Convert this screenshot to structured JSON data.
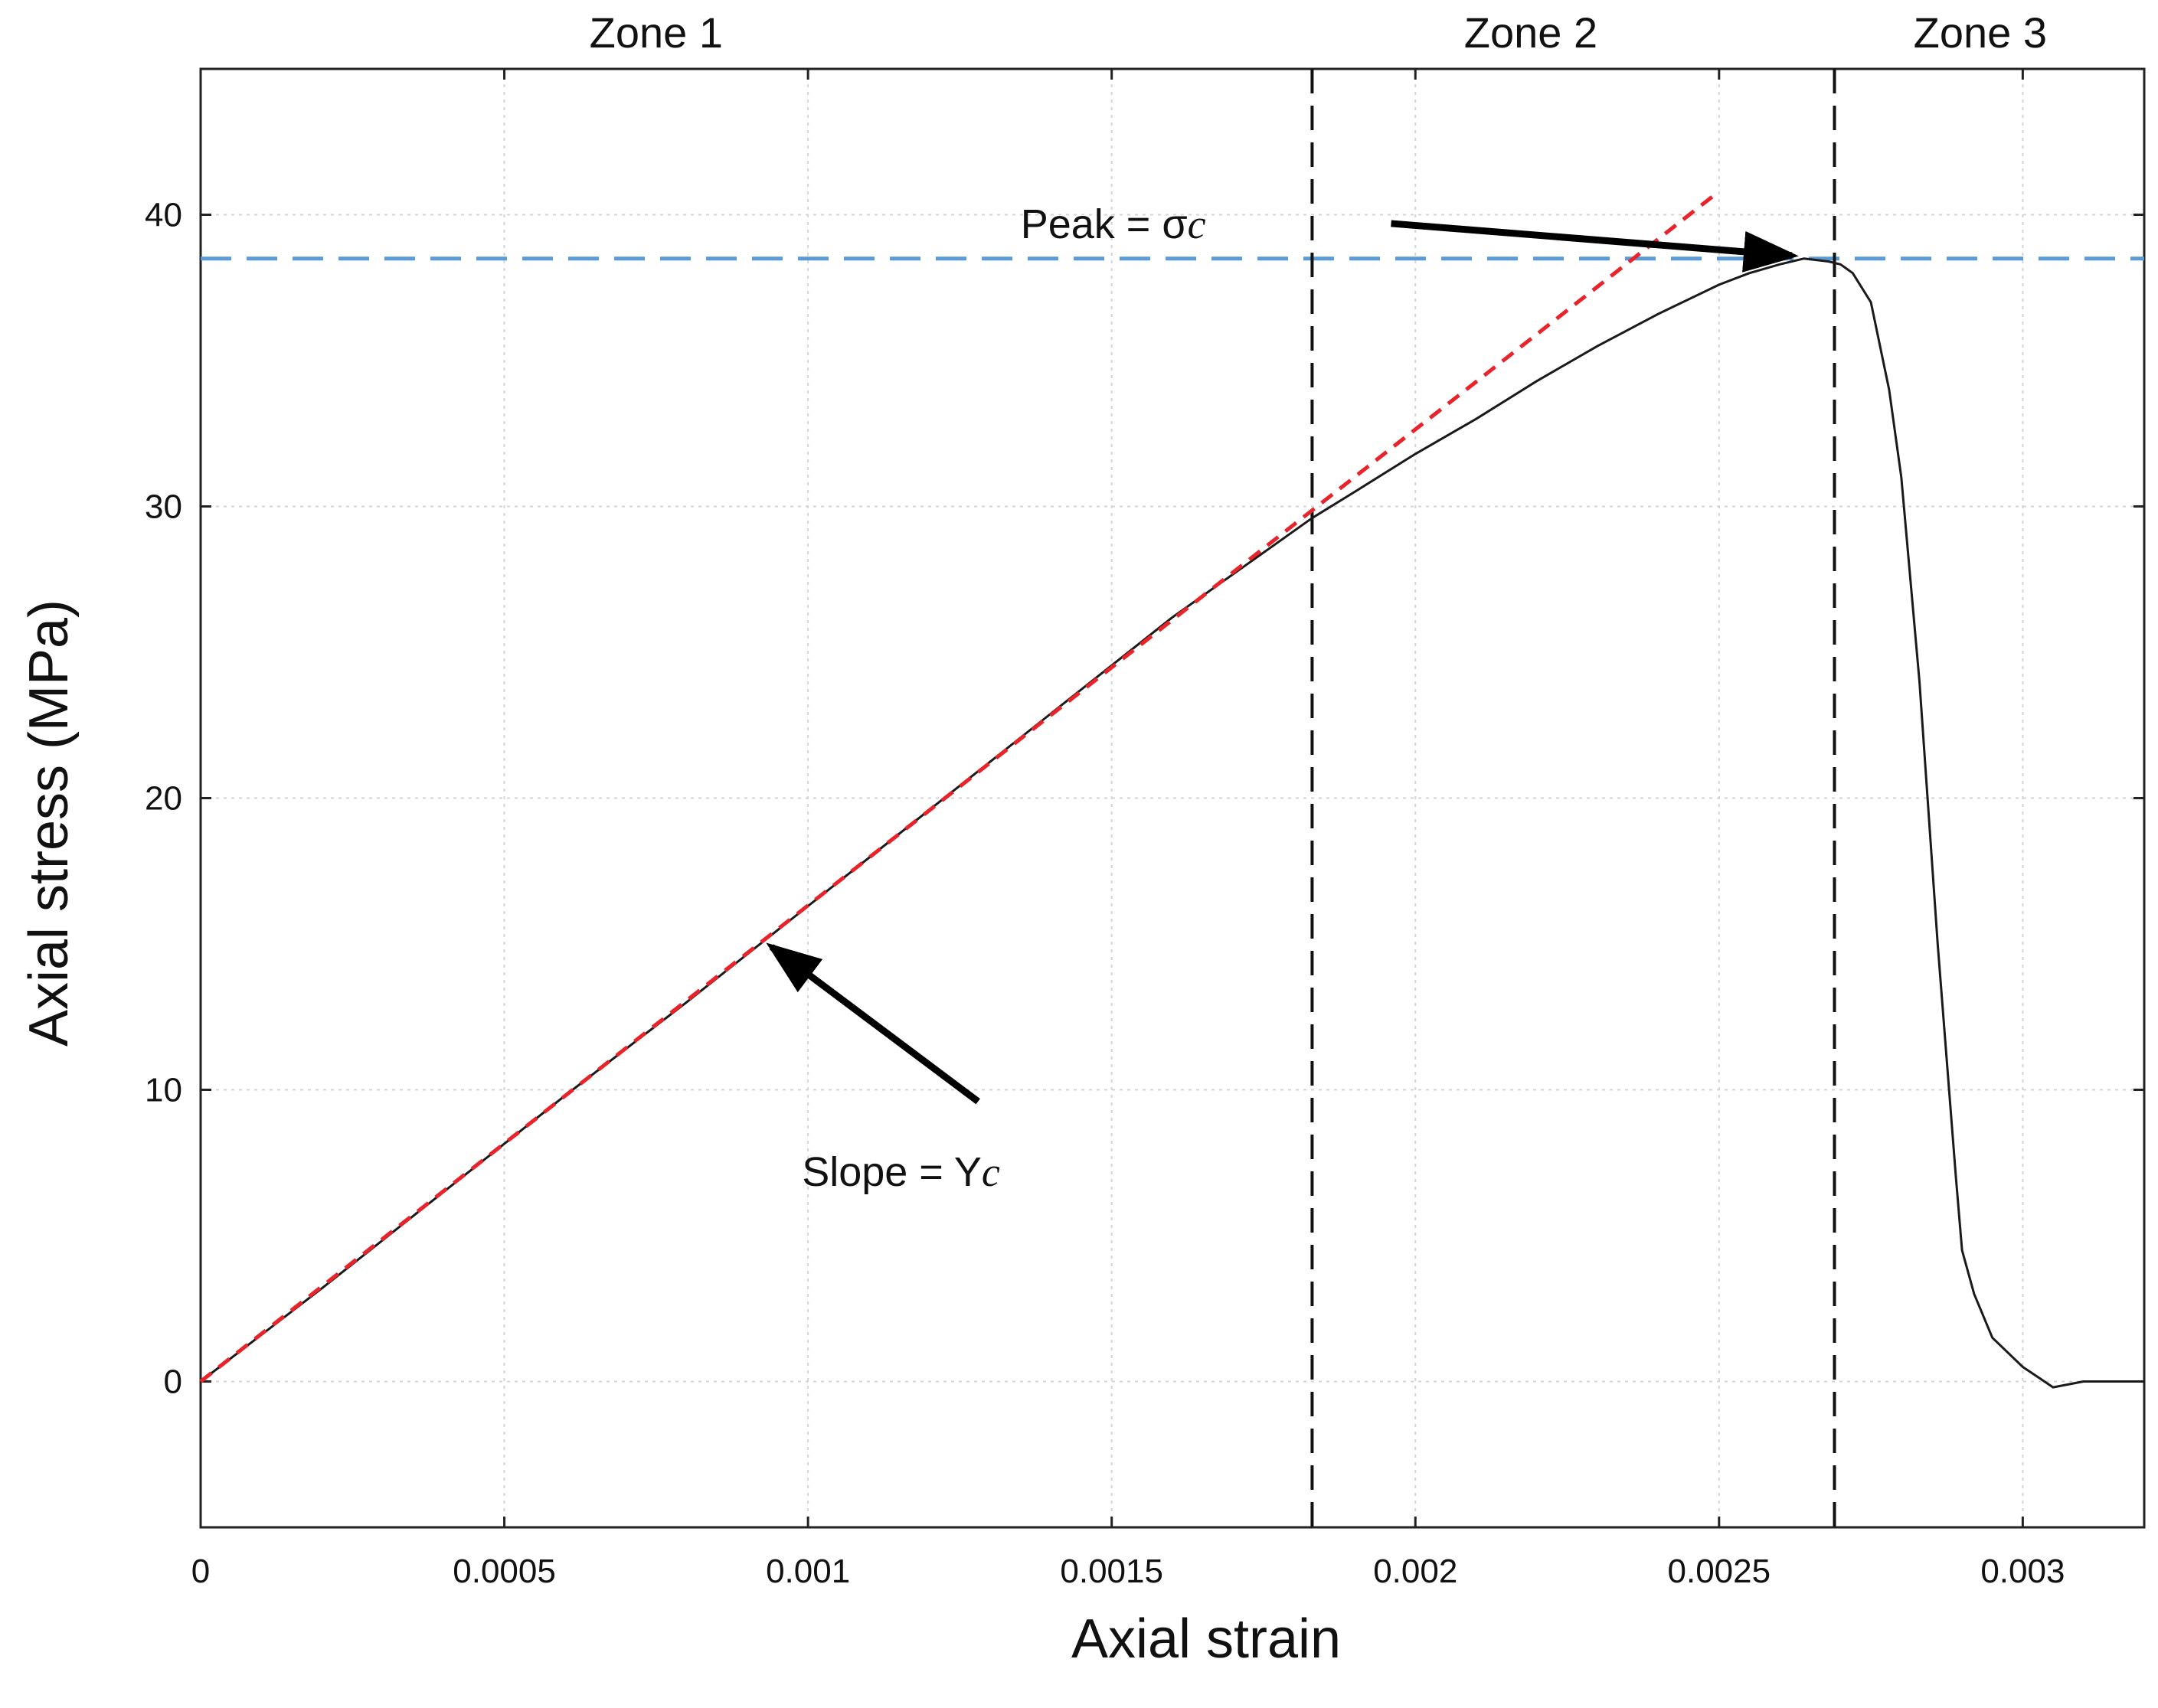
{
  "chart_data": {
    "type": "line",
    "title": "",
    "xlabel": "Axial strain",
    "ylabel": "Axial stress (MPa)",
    "xlim": [
      0,
      0.0032
    ],
    "ylim": [
      -5,
      45
    ],
    "x_ticks": [
      0,
      0.0005,
      0.001,
      0.0015,
      0.002,
      0.0025,
      0.003
    ],
    "x_tick_labels": [
      "0",
      "0.0005",
      "0.001",
      "0.0015",
      "0.002",
      "0.0025",
      "0.003"
    ],
    "y_ticks": [
      0,
      10,
      20,
      30,
      40
    ],
    "y_tick_labels": [
      "0",
      "10",
      "20",
      "30",
      "40"
    ],
    "grid": true,
    "colors": {
      "curve": "#1a1a1a",
      "fit_line": "#e8232a",
      "peak_line": "#5b9bd5",
      "zone_lines": "#111111",
      "grid": "#d4d4d4"
    },
    "series": [
      {
        "x": [
          0,
          0.0002,
          0.0004,
          0.0006,
          0.0008,
          0.001,
          0.0012,
          0.0014,
          0.0016,
          0.00183,
          0.0019,
          0.002,
          0.0021,
          0.0022,
          0.0023,
          0.0024,
          0.0025,
          0.00255,
          0.0026,
          0.00264,
          0.00268,
          0.0027,
          0.00272,
          0.00275,
          0.00278,
          0.0028,
          0.00283,
          0.00286,
          0.00289,
          0.0029,
          0.00292,
          0.00295,
          0.003,
          0.00305,
          0.0031,
          0.0032
        ],
        "y": [
          0,
          3.2,
          6.5,
          9.8,
          13.0,
          16.3,
          19.6,
          22.9,
          26.2,
          29.6,
          30.5,
          31.8,
          33.0,
          34.3,
          35.5,
          36.6,
          37.6,
          38.0,
          38.3,
          38.5,
          38.4,
          38.3,
          38.0,
          37.0,
          34.0,
          31.0,
          24.0,
          15.0,
          7.0,
          4.5,
          3.0,
          1.5,
          0.5,
          -0.2,
          0,
          0
        ]
      },
      {
        "x": [
          0,
          0.0025
        ],
        "y": [
          0,
          40.8
        ]
      },
      {
        "x": [
          0,
          0.0032
        ],
        "y": [
          38.5,
          38.5
        ]
      }
    ],
    "zone_boundaries": [
      0.00183,
      0.00269
    ],
    "zones": [
      {
        "label": "Zone 1",
        "x": 0.00075
      },
      {
        "label": "Zone 2",
        "x": 0.00219
      },
      {
        "label": "Zone 3",
        "x": 0.00293
      }
    ],
    "annotations": [
      {
        "text": "Peak = σ",
        "sub": "c",
        "text_x": 0.00135,
        "text_y": 39.2,
        "arrow_from": [
          0.00196,
          39.7
        ],
        "arrow_to": [
          0.00262,
          38.6
        ]
      },
      {
        "text": "Slope = Y",
        "sub": "c",
        "text_x": 0.00099,
        "text_y": 6.7,
        "arrow_from": [
          0.00128,
          9.6
        ],
        "arrow_to": [
          0.00094,
          14.9
        ]
      }
    ]
  }
}
